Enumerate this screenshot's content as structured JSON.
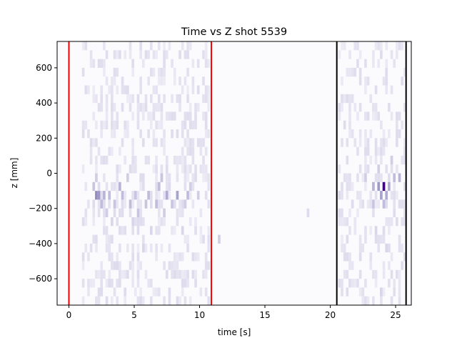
{
  "chart_data": {
    "type": "heatmap",
    "title": "Time vs Z shot 5539",
    "xlabel": "time [s]",
    "ylabel": "z [mm]",
    "xlim": [
      -0.9,
      26.2
    ],
    "ylim": [
      -750,
      750
    ],
    "xticks": [
      {
        "value": 0,
        "label": "0"
      },
      {
        "value": 5,
        "label": "5"
      },
      {
        "value": 10,
        "label": "10"
      },
      {
        "value": 15,
        "label": "15"
      },
      {
        "value": 20,
        "label": "20"
      },
      {
        "value": 25,
        "label": "25"
      }
    ],
    "yticks": [
      {
        "value": -600,
        "label": "−600"
      },
      {
        "value": -400,
        "label": "−400"
      },
      {
        "value": -200,
        "label": "−200"
      },
      {
        "value": 0,
        "label": "0"
      },
      {
        "value": 200,
        "label": "200"
      },
      {
        "value": 400,
        "label": "400"
      },
      {
        "value": 600,
        "label": "600"
      }
    ],
    "colormap": "Purples",
    "colors": {
      "background": "#fbfbfe",
      "low": "#f2f1f8",
      "high": "#3f007d",
      "red_line": "#ff0000",
      "black_line": "#000000"
    },
    "vertical_lines": [
      {
        "x": 0.0,
        "color": "red"
      },
      {
        "x": 10.9,
        "color": "red"
      },
      {
        "x": 20.5,
        "color": "black"
      },
      {
        "x": 25.8,
        "color": "black"
      }
    ],
    "heat_cells": [
      {
        "t": 2.0,
        "z": -125,
        "v": 0.55
      },
      {
        "t": 2.2,
        "z": -125,
        "v": 0.5
      },
      {
        "t": 2.6,
        "z": -125,
        "v": 0.35
      },
      {
        "t": 3.0,
        "z": -125,
        "v": 0.3
      },
      {
        "t": 4.0,
        "z": -125,
        "v": 0.3
      },
      {
        "t": 5.0,
        "z": -125,
        "v": 0.25
      },
      {
        "t": 6.0,
        "z": -125,
        "v": 0.3
      },
      {
        "t": 7.4,
        "z": -125,
        "v": 0.4
      },
      {
        "t": 8.2,
        "z": -125,
        "v": 0.45
      },
      {
        "t": 9.0,
        "z": -125,
        "v": 0.3
      },
      {
        "t": 9.8,
        "z": -125,
        "v": 0.2
      },
      {
        "t": 2.4,
        "z": -175,
        "v": 0.3
      },
      {
        "t": 3.4,
        "z": -175,
        "v": 0.25
      },
      {
        "t": 4.6,
        "z": -175,
        "v": 0.3
      },
      {
        "t": 5.8,
        "z": -175,
        "v": 0.25
      },
      {
        "t": 6.6,
        "z": -175,
        "v": 0.3
      },
      {
        "t": 7.8,
        "z": -175,
        "v": 0.25
      },
      {
        "t": 8.8,
        "z": -175,
        "v": 0.2
      },
      {
        "t": 1.8,
        "z": -75,
        "v": 0.25
      },
      {
        "t": 3.8,
        "z": -75,
        "v": 0.35
      },
      {
        "t": 6.8,
        "z": -75,
        "v": 0.3
      },
      {
        "t": 9.2,
        "z": -75,
        "v": 0.2
      },
      {
        "t": 2.0,
        "z": -25,
        "v": 0.2
      },
      {
        "t": 4.4,
        "z": -25,
        "v": 0.2
      },
      {
        "t": 7.0,
        "z": -25,
        "v": 0.25
      },
      {
        "t": 2.8,
        "z": -225,
        "v": 0.2
      },
      {
        "t": 5.2,
        "z": -225,
        "v": 0.25
      },
      {
        "t": 7.2,
        "z": -225,
        "v": 0.2
      },
      {
        "t": 3.2,
        "z": -275,
        "v": 0.15
      },
      {
        "t": 4.8,
        "z": -275,
        "v": 0.15
      },
      {
        "t": 6.2,
        "z": -325,
        "v": 0.15
      },
      {
        "t": 8.6,
        "z": -325,
        "v": 0.15
      },
      {
        "t": 5.6,
        "z": -425,
        "v": 0.15
      },
      {
        "t": 3.6,
        "z": -525,
        "v": 0.12
      },
      {
        "t": 8.0,
        "z": -575,
        "v": 0.12
      },
      {
        "t": 2.4,
        "z": -675,
        "v": 0.12
      },
      {
        "t": 11.4,
        "z": -375,
        "v": 0.2
      },
      {
        "t": 18.2,
        "z": -225,
        "v": 0.12
      },
      {
        "t": 22.6,
        "z": -25,
        "v": 0.2
      },
      {
        "t": 23.2,
        "z": -75,
        "v": 0.35
      },
      {
        "t": 23.6,
        "z": -75,
        "v": 0.5
      },
      {
        "t": 24.0,
        "z": -75,
        "v": 1.0
      },
      {
        "t": 24.4,
        "z": -75,
        "v": 0.4
      },
      {
        "t": 24.8,
        "z": -25,
        "v": 0.3
      },
      {
        "t": 25.2,
        "z": -25,
        "v": 0.35
      },
      {
        "t": 23.8,
        "z": -125,
        "v": 0.45
      },
      {
        "t": 24.2,
        "z": -125,
        "v": 0.4
      },
      {
        "t": 23.2,
        "z": -175,
        "v": 0.25
      },
      {
        "t": 24.0,
        "z": -175,
        "v": 0.3
      },
      {
        "t": 23.6,
        "z": 25,
        "v": 0.2
      },
      {
        "t": 24.6,
        "z": 75,
        "v": 0.2
      },
      {
        "t": 23.4,
        "z": -325,
        "v": 0.15
      },
      {
        "t": 24.2,
        "z": -425,
        "v": 0.15
      },
      {
        "t": 23.8,
        "z": -675,
        "v": 0.15
      }
    ]
  }
}
